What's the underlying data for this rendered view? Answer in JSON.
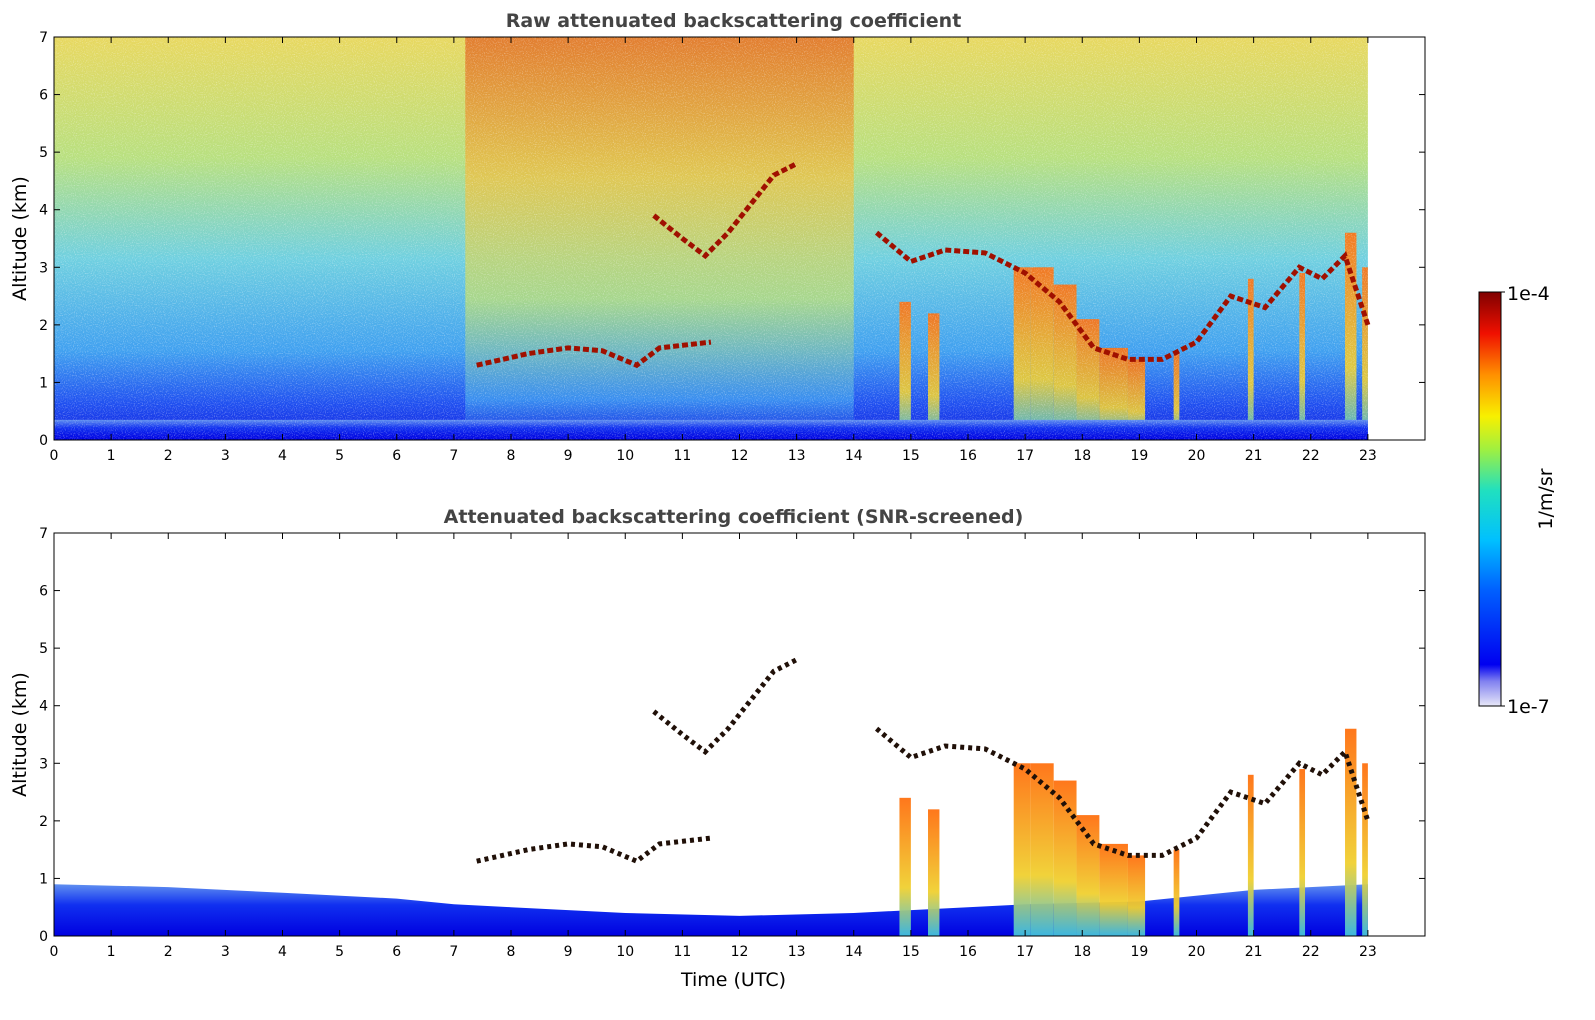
{
  "chart_data": [
    {
      "type": "heatmap",
      "title": "Raw attenuated backscattering coefficient",
      "xlabel": "",
      "ylabel": "Altitude (km)",
      "xlim": [
        0,
        24
      ],
      "ylim": [
        0,
        7
      ],
      "x_ticks": [
        "0",
        "1",
        "2",
        "3",
        "4",
        "5",
        "6",
        "7",
        "8",
        "9",
        "10",
        "11",
        "12",
        "13",
        "14",
        "15",
        "16",
        "17",
        "18",
        "19",
        "20",
        "21",
        "22",
        "23"
      ],
      "y_ticks": [
        "0",
        "1",
        "2",
        "3",
        "4",
        "5",
        "6",
        "7"
      ],
      "data_end_x": 23,
      "boundary_layer_top_km": 0.35,
      "cloud_layers": [
        {
          "x": [
            7.4,
            8.3,
            9.0,
            9.6,
            10.2,
            10.6,
            11.5
          ],
          "y": [
            1.3,
            1.5,
            1.6,
            1.55,
            1.3,
            1.6,
            1.7
          ]
        },
        {
          "x": [
            10.5,
            11.0,
            11.4,
            11.8,
            12.2,
            12.6,
            13.0
          ],
          "y": [
            3.9,
            3.5,
            3.2,
            3.6,
            4.1,
            4.6,
            4.8
          ]
        },
        {
          "x": [
            14.4,
            15.0,
            15.6,
            16.3,
            17.0,
            17.6,
            18.2,
            18.8,
            19.4,
            20.0,
            20.6,
            21.2,
            21.8,
            22.2,
            22.6,
            23.0
          ],
          "y": [
            3.6,
            3.1,
            3.3,
            3.25,
            2.9,
            2.4,
            1.6,
            1.4,
            1.4,
            1.7,
            2.5,
            2.3,
            3.0,
            2.8,
            3.2,
            2.0
          ]
        }
      ]
    },
    {
      "type": "heatmap",
      "title": "Attenuated backscattering coefficient (SNR-screened)",
      "xlabel": "Time (UTC)",
      "ylabel": "Altitude (km)",
      "xlim": [
        0,
        24
      ],
      "ylim": [
        0,
        7
      ],
      "x_ticks": [
        "0",
        "1",
        "2",
        "3",
        "4",
        "5",
        "6",
        "7",
        "8",
        "9",
        "10",
        "11",
        "12",
        "13",
        "14",
        "15",
        "16",
        "17",
        "18",
        "19",
        "20",
        "21",
        "22",
        "23"
      ],
      "y_ticks": [
        "0",
        "1",
        "2",
        "3",
        "4",
        "5",
        "6",
        "7"
      ],
      "data_end_x": 23
    }
  ],
  "colorbar": {
    "label": "1/m/sr",
    "max_label": "1e-4",
    "min_label": "1e-7",
    "colormap": [
      "#0000c8",
      "#0040ff",
      "#00a0ff",
      "#00e0d0",
      "#60e060",
      "#f0f000",
      "#ff8000",
      "#e00000",
      "#800000"
    ]
  }
}
